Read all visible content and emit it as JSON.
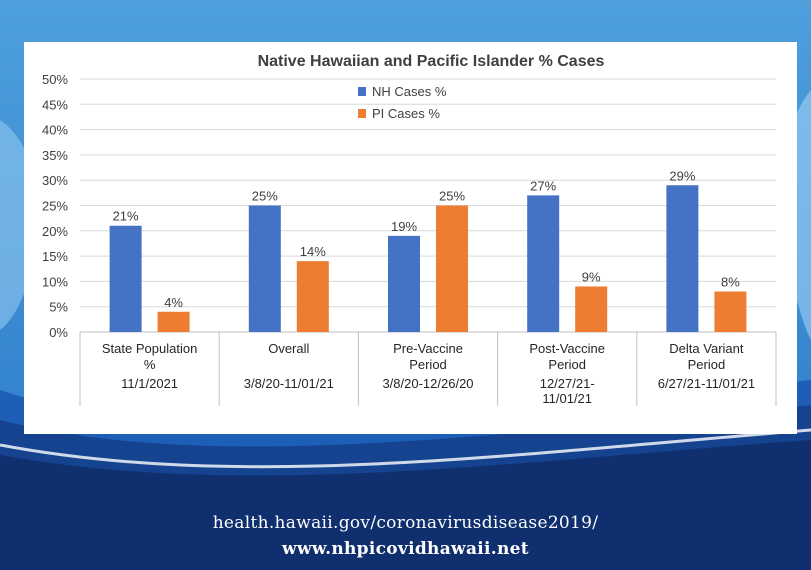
{
  "chart_data": {
    "type": "bar",
    "title": "Native Hawaiian and Pacific Islander % Cases",
    "categories": [
      {
        "lines": [
          "State Population",
          "%"
        ],
        "date_lines": [
          "11/1/2021"
        ]
      },
      {
        "lines": [
          "Overall"
        ],
        "date_lines": [
          "3/8/20-11/01/21"
        ]
      },
      {
        "lines": [
          "Pre-Vaccine",
          "Period"
        ],
        "date_lines": [
          "3/8/20-12/26/20"
        ]
      },
      {
        "lines": [
          "Post-Vaccine",
          "Period"
        ],
        "date_lines": [
          "12/27/21-",
          "11/01/21"
        ]
      },
      {
        "lines": [
          "Delta Variant",
          "Period"
        ],
        "date_lines": [
          "6/27/21-11/01/21"
        ]
      }
    ],
    "series": [
      {
        "name": "NH Cases %",
        "color": "#4472c4",
        "values": [
          21,
          25,
          19,
          27,
          29
        ],
        "labels": [
          "21%",
          "25%",
          "19%",
          "27%",
          "29%"
        ]
      },
      {
        "name": "PI Cases %",
        "color": "#ed7d31",
        "values": [
          4,
          14,
          25,
          9,
          8
        ],
        "labels": [
          "4%",
          "14%",
          "25%",
          "9%",
          "8%"
        ]
      }
    ],
    "ylim": [
      0,
      50
    ],
    "yticks": [
      "0%",
      "5%",
      "10%",
      "15%",
      "20%",
      "25%",
      "30%",
      "35%",
      "40%",
      "45%",
      "50%"
    ],
    "grid": true,
    "legend": "top-center"
  },
  "footer": {
    "line1": "health.hawaii.gov/coronavirusdisease2019/",
    "line2": "www.nhpicovidhawaii.net"
  }
}
